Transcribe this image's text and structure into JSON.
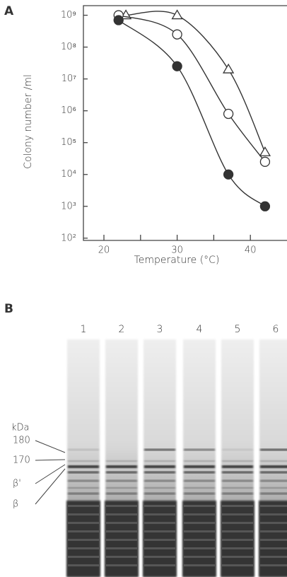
{
  "chart_data": {
    "type": "scatter",
    "panel_label": "A",
    "x_label": "Temperature (°C)",
    "y_label": "Colony number /ml",
    "xlim": [
      17.2,
      45
    ],
    "xticks": [
      20,
      30,
      40
    ],
    "xminorticks": [
      25,
      35
    ],
    "ylim": [
      85,
      2000000000
    ],
    "ylog": true,
    "yticks": [
      {
        "value": 100,
        "label": "10²"
      },
      {
        "value": 1000,
        "label": "10³"
      },
      {
        "value": 10000,
        "label": "10⁴"
      },
      {
        "value": 100000,
        "label": "10⁵"
      },
      {
        "value": 1000000,
        "label": "10⁶"
      },
      {
        "value": 10000000,
        "label": "10⁷"
      },
      {
        "value": 100000000,
        "label": "10⁸"
      },
      {
        "value": 1000000000,
        "label": "10⁹"
      }
    ],
    "series": [
      {
        "marker": "triangle",
        "color": "#333333",
        "x": [
          23,
          30,
          37,
          42
        ],
        "values": [
          1000000000,
          1000000000,
          20000000,
          50000
        ]
      },
      {
        "marker": "open-circle",
        "color": "#333333",
        "x": [
          22,
          30,
          37,
          42
        ],
        "values": [
          1000000000,
          250000000,
          800000,
          25000
        ]
      },
      {
        "marker": "filled-circle",
        "color": "#333333",
        "x": [
          22,
          30,
          37,
          42
        ],
        "values": [
          700000000,
          25000000,
          10000,
          1000
        ]
      }
    ]
  },
  "gel": {
    "panel_label": "B",
    "lanes": [
      "1",
      "2",
      "3",
      "4",
      "5",
      "6"
    ],
    "unit": "kDa",
    "markers": [
      "180",
      "170",
      "β'",
      "β"
    ]
  }
}
